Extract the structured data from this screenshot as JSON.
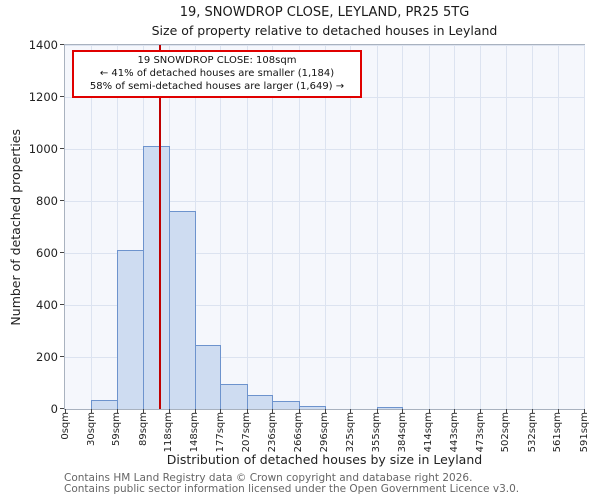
{
  "title": "19, SNOWDROP CLOSE, LEYLAND, PR25 5TG",
  "subtitle": "Size of property relative to detached houses in Leyland",
  "annotation": {
    "line1": "19 SNOWDROP CLOSE: 108sqm",
    "line2": "← 41% of detached houses are smaller (1,184)",
    "line3": "58% of semi-detached houses are larger (1,649) →",
    "border_color": "#e00000"
  },
  "footer": {
    "line1": "Contains HM Land Registry data © Crown copyright and database right 2026.",
    "line2": "Contains public sector information licensed under the Open Government Licence v3.0."
  },
  "chart_data": {
    "type": "bar",
    "title": "19, SNOWDROP CLOSE, LEYLAND, PR25 5TG — Size of property relative to detached houses in Leyland",
    "xlabel": "Distribution of detached houses by size in Leyland",
    "ylabel": "Number of detached properties",
    "bin_edges": [
      0,
      30,
      59,
      89,
      118,
      148,
      177,
      207,
      236,
      266,
      296,
      325,
      355,
      384,
      414,
      443,
      473,
      502,
      532,
      561,
      591
    ],
    "xtick_labels": [
      "0sqm",
      "30sqm",
      "59sqm",
      "89sqm",
      "118sqm",
      "148sqm",
      "177sqm",
      "207sqm",
      "236sqm",
      "266sqm",
      "296sqm",
      "325sqm",
      "355sqm",
      "384sqm",
      "414sqm",
      "443sqm",
      "473sqm",
      "502sqm",
      "532sqm",
      "561sqm",
      "591sqm"
    ],
    "counts": [
      0,
      35,
      610,
      1010,
      760,
      245,
      95,
      55,
      30,
      12,
      0,
      0,
      8,
      0,
      0,
      0,
      0,
      0,
      0,
      0
    ],
    "yticks": [
      0,
      200,
      400,
      600,
      800,
      1000,
      1200,
      1400
    ],
    "ylim": [
      0,
      1400
    ],
    "xlim": [
      0,
      591
    ],
    "grid": true,
    "legend": null,
    "marker": {
      "value": 108,
      "label": "19 SNOWDROP CLOSE: 108sqm",
      "color": "#c00000"
    },
    "bar_fill": "#cedcf1",
    "bar_border": "#6d93cd"
  }
}
